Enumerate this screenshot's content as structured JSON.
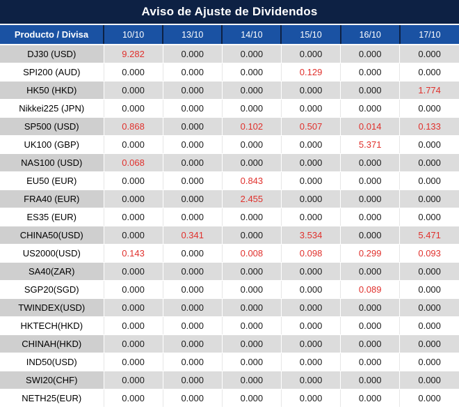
{
  "title": "Aviso de Ajuste de Dividendos",
  "table": {
    "product_header": "Producto / Divisa",
    "dates": [
      "10/10",
      "13/10",
      "14/10",
      "15/10",
      "16/10",
      "17/10"
    ],
    "rows": [
      {
        "product": "DJ30 (USD)",
        "values": [
          "9.282",
          "0.000",
          "0.000",
          "0.000",
          "0.000",
          "0.000"
        ],
        "red": [
          true,
          false,
          false,
          false,
          false,
          false
        ]
      },
      {
        "product": "SPI200 (AUD)",
        "values": [
          "0.000",
          "0.000",
          "0.000",
          "0.129",
          "0.000",
          "0.000"
        ],
        "red": [
          false,
          false,
          false,
          true,
          false,
          false
        ]
      },
      {
        "product": "HK50 (HKD)",
        "values": [
          "0.000",
          "0.000",
          "0.000",
          "0.000",
          "0.000",
          "1.774"
        ],
        "red": [
          false,
          false,
          false,
          false,
          false,
          true
        ]
      },
      {
        "product": "Nikkei225 (JPN)",
        "values": [
          "0.000",
          "0.000",
          "0.000",
          "0.000",
          "0.000",
          "0.000"
        ],
        "red": [
          false,
          false,
          false,
          false,
          false,
          false
        ]
      },
      {
        "product": "SP500 (USD)",
        "values": [
          "0.868",
          "0.000",
          "0.102",
          "0.507",
          "0.014",
          "0.133"
        ],
        "red": [
          true,
          false,
          true,
          true,
          true,
          true
        ]
      },
      {
        "product": "UK100 (GBP)",
        "values": [
          "0.000",
          "0.000",
          "0.000",
          "0.000",
          "5.371",
          "0.000"
        ],
        "red": [
          false,
          false,
          false,
          false,
          true,
          false
        ]
      },
      {
        "product": "NAS100 (USD)",
        "values": [
          "0.068",
          "0.000",
          "0.000",
          "0.000",
          "0.000",
          "0.000"
        ],
        "red": [
          true,
          false,
          false,
          false,
          false,
          false
        ]
      },
      {
        "product": "EU50 (EUR)",
        "values": [
          "0.000",
          "0.000",
          "0.843",
          "0.000",
          "0.000",
          "0.000"
        ],
        "red": [
          false,
          false,
          true,
          false,
          false,
          false
        ]
      },
      {
        "product": "FRA40 (EUR)",
        "values": [
          "0.000",
          "0.000",
          "2.455",
          "0.000",
          "0.000",
          "0.000"
        ],
        "red": [
          false,
          false,
          true,
          false,
          false,
          false
        ]
      },
      {
        "product": "ES35 (EUR)",
        "values": [
          "0.000",
          "0.000",
          "0.000",
          "0.000",
          "0.000",
          "0.000"
        ],
        "red": [
          false,
          false,
          false,
          false,
          false,
          false
        ]
      },
      {
        "product": "CHINA50(USD)",
        "values": [
          "0.000",
          "0.341",
          "0.000",
          "3.534",
          "0.000",
          "5.471"
        ],
        "red": [
          false,
          true,
          false,
          true,
          false,
          true
        ]
      },
      {
        "product": "US2000(USD)",
        "values": [
          "0.143",
          "0.000",
          "0.008",
          "0.098",
          "0.299",
          "0.093"
        ],
        "red": [
          true,
          false,
          true,
          true,
          true,
          true
        ]
      },
      {
        "product": "SA40(ZAR)",
        "values": [
          "0.000",
          "0.000",
          "0.000",
          "0.000",
          "0.000",
          "0.000"
        ],
        "red": [
          false,
          false,
          false,
          false,
          false,
          false
        ]
      },
      {
        "product": "SGP20(SGD)",
        "values": [
          "0.000",
          "0.000",
          "0.000",
          "0.000",
          "0.089",
          "0.000"
        ],
        "red": [
          false,
          false,
          false,
          false,
          true,
          false
        ]
      },
      {
        "product": "TWINDEX(USD)",
        "values": [
          "0.000",
          "0.000",
          "0.000",
          "0.000",
          "0.000",
          "0.000"
        ],
        "red": [
          false,
          false,
          false,
          false,
          false,
          false
        ]
      },
      {
        "product": "HKTECH(HKD)",
        "values": [
          "0.000",
          "0.000",
          "0.000",
          "0.000",
          "0.000",
          "0.000"
        ],
        "red": [
          false,
          false,
          false,
          false,
          false,
          false
        ]
      },
      {
        "product": "CHINAH(HKD)",
        "values": [
          "0.000",
          "0.000",
          "0.000",
          "0.000",
          "0.000",
          "0.000"
        ],
        "red": [
          false,
          false,
          false,
          false,
          false,
          false
        ]
      },
      {
        "product": "IND50(USD)",
        "values": [
          "0.000",
          "0.000",
          "0.000",
          "0.000",
          "0.000",
          "0.000"
        ],
        "red": [
          false,
          false,
          false,
          false,
          false,
          false
        ]
      },
      {
        "product": "SWI20(CHF)",
        "values": [
          "0.000",
          "0.000",
          "0.000",
          "0.000",
          "0.000",
          "0.000"
        ],
        "red": [
          false,
          false,
          false,
          false,
          false,
          false
        ]
      },
      {
        "product": "NETH25(EUR)",
        "values": [
          "0.000",
          "0.000",
          "0.000",
          "0.000",
          "0.000",
          "0.000"
        ],
        "red": [
          false,
          false,
          false,
          false,
          false,
          false
        ]
      }
    ]
  },
  "colors": {
    "title_bg": "#0d2144",
    "header_bg": "#1a52a3",
    "header_divider": "#0d2144",
    "alt_row_bg": "#dcdcdc",
    "alt_row_product_bg": "#cfcfcf",
    "highlight_red": "#e0302c",
    "value_text": "#1a1a1a"
  }
}
